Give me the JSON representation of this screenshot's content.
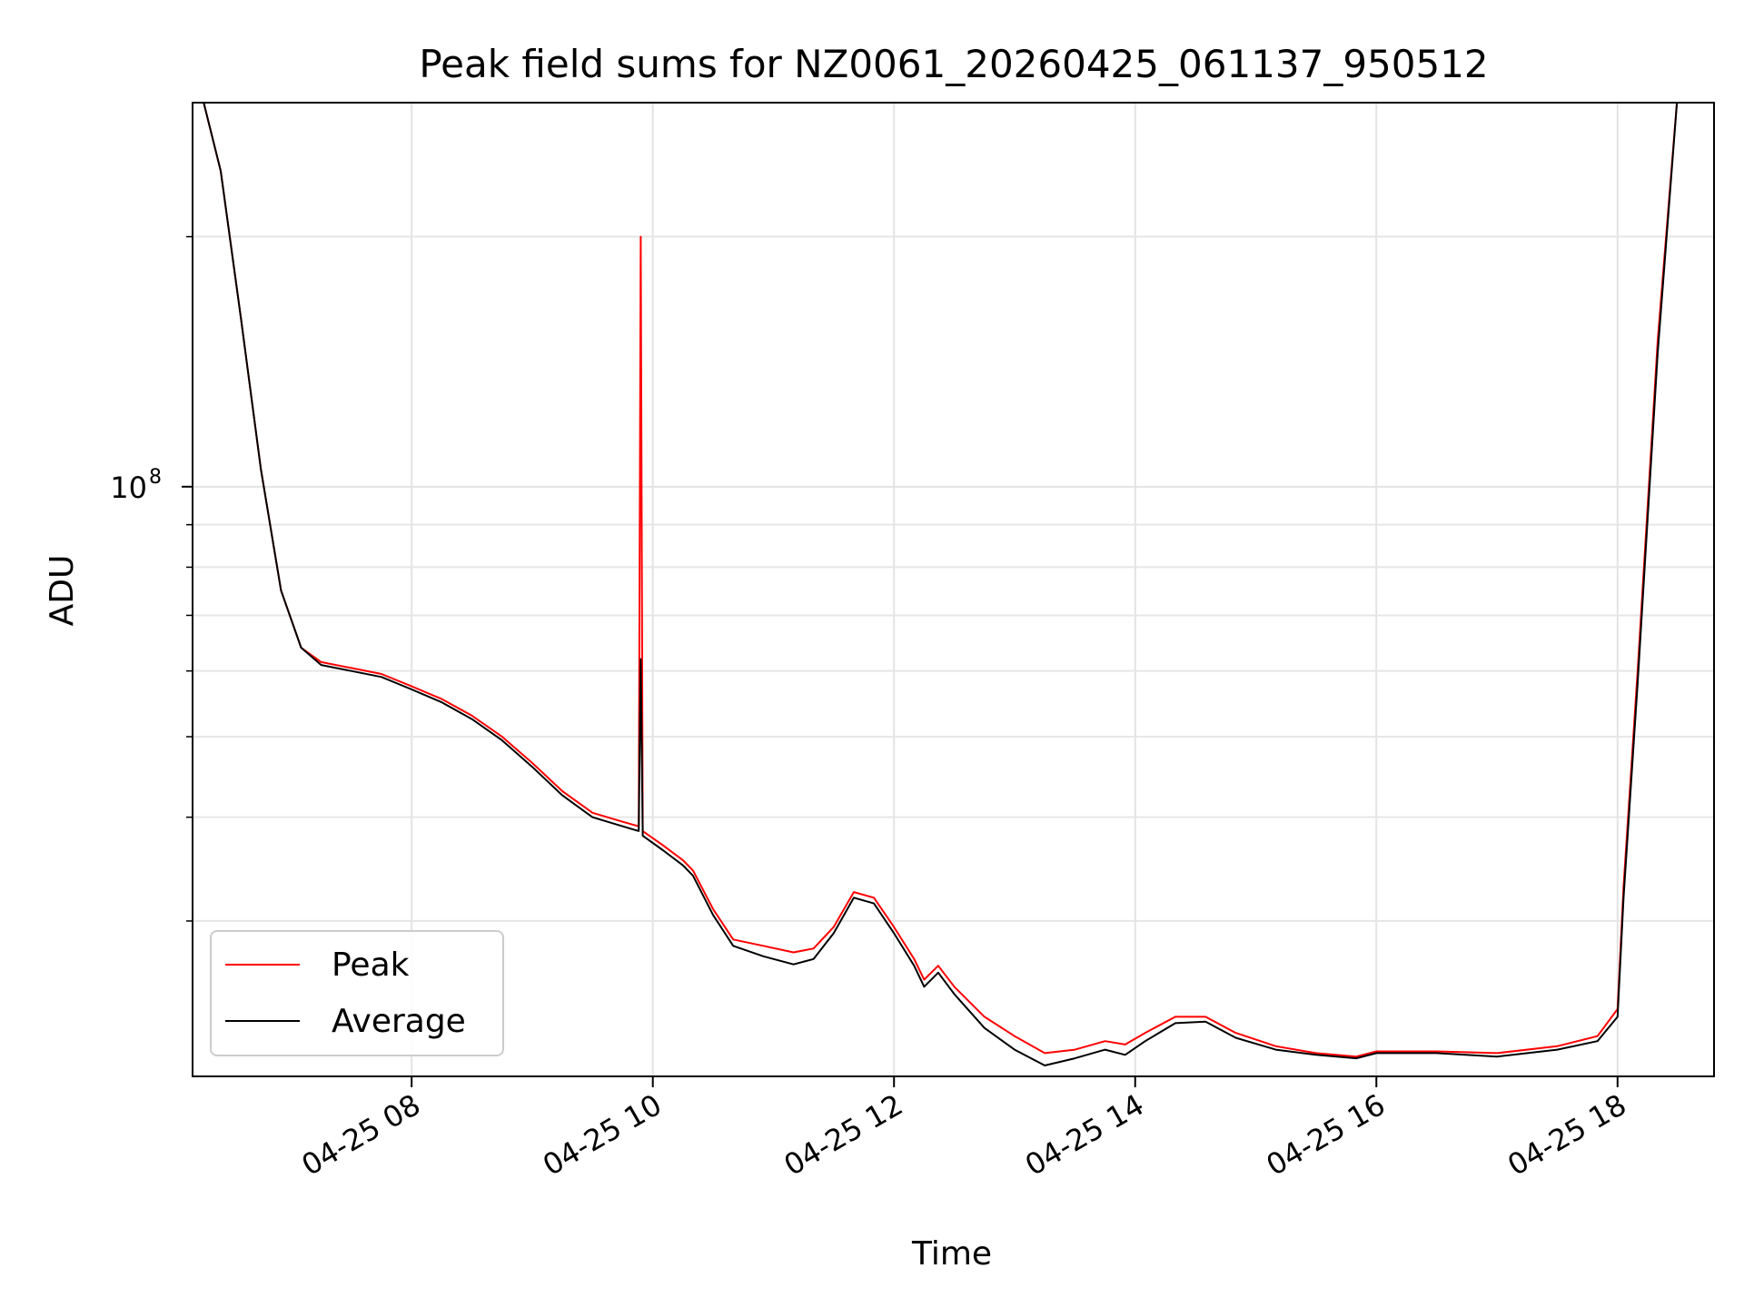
{
  "chart_data": {
    "type": "line",
    "title": "Peak field sums for NZ0061_20260425_061137_950512",
    "xlabel": "Time",
    "ylabel": "ADU",
    "yscale": "log",
    "grid": true,
    "legend": "lower-left",
    "xlim": [
      "2026-04-25 06:11",
      "2026-04-25 18:48"
    ],
    "ylim": [
      19500000,
      290000000
    ],
    "x_ticks": [
      {
        "time": "2026-04-25 08:00",
        "label": "04-25 08"
      },
      {
        "time": "2026-04-25 10:00",
        "label": "04-25 10"
      },
      {
        "time": "2026-04-25 12:00",
        "label": "04-25 12"
      },
      {
        "time": "2026-04-25 14:00",
        "label": "04-25 14"
      },
      {
        "time": "2026-04-25 16:00",
        "label": "04-25 16"
      },
      {
        "time": "2026-04-25 18:00",
        "label": "04-25 18"
      }
    ],
    "y_major_ticks": [
      {
        "value": 100000000,
        "label_base": "10",
        "label_exp": "8"
      }
    ],
    "y_minor_ticks": [
      30000000,
      40000000,
      50000000,
      60000000,
      70000000,
      80000000,
      90000000,
      200000000
    ],
    "series": [
      {
        "name": "Peak",
        "color": "#ff0000",
        "points": [
          [
            "2026-04-25 06:15",
            300000000
          ],
          [
            "2026-04-25 06:25",
            240000000
          ],
          [
            "2026-04-25 06:35",
            160000000
          ],
          [
            "2026-04-25 06:45",
            105000000
          ],
          [
            "2026-04-25 06:55",
            75000000
          ],
          [
            "2026-04-25 07:05",
            64000000
          ],
          [
            "2026-04-25 07:15",
            61500000
          ],
          [
            "2026-04-25 07:30",
            60500000
          ],
          [
            "2026-04-25 07:45",
            59500000
          ],
          [
            "2026-04-25 08:00",
            57500000
          ],
          [
            "2026-04-25 08:15",
            55500000
          ],
          [
            "2026-04-25 08:30",
            53000000
          ],
          [
            "2026-04-25 08:45",
            50000000
          ],
          [
            "2026-04-25 09:00",
            46500000
          ],
          [
            "2026-04-25 09:15",
            43000000
          ],
          [
            "2026-04-25 09:30",
            40500000
          ],
          [
            "2026-04-25 09:45",
            39500000
          ],
          [
            "2026-04-25 09:53",
            39000000
          ],
          [
            "2026-04-25 09:54",
            200000000
          ],
          [
            "2026-04-25 09:55",
            38500000
          ],
          [
            "2026-04-25 10:05",
            37000000
          ],
          [
            "2026-04-25 10:15",
            35500000
          ],
          [
            "2026-04-25 10:20",
            34500000
          ],
          [
            "2026-04-25 10:30",
            31000000
          ],
          [
            "2026-04-25 10:40",
            28500000
          ],
          [
            "2026-04-25 10:55",
            28000000
          ],
          [
            "2026-04-25 11:10",
            27500000
          ],
          [
            "2026-04-25 11:20",
            27800000
          ],
          [
            "2026-04-25 11:30",
            29500000
          ],
          [
            "2026-04-25 11:40",
            32500000
          ],
          [
            "2026-04-25 11:50",
            32000000
          ],
          [
            "2026-04-25 12:00",
            29500000
          ],
          [
            "2026-04-25 12:10",
            27000000
          ],
          [
            "2026-04-25 12:15",
            25500000
          ],
          [
            "2026-04-25 12:22",
            26500000
          ],
          [
            "2026-04-25 12:30",
            25000000
          ],
          [
            "2026-04-25 12:45",
            23000000
          ],
          [
            "2026-04-25 13:00",
            21800000
          ],
          [
            "2026-04-25 13:15",
            20800000
          ],
          [
            "2026-04-25 13:30",
            21000000
          ],
          [
            "2026-04-25 13:45",
            21500000
          ],
          [
            "2026-04-25 13:55",
            21300000
          ],
          [
            "2026-04-25 14:05",
            22000000
          ],
          [
            "2026-04-25 14:20",
            23000000
          ],
          [
            "2026-04-25 14:35",
            23000000
          ],
          [
            "2026-04-25 14:50",
            22000000
          ],
          [
            "2026-04-25 15:10",
            21200000
          ],
          [
            "2026-04-25 15:30",
            20800000
          ],
          [
            "2026-04-25 15:50",
            20600000
          ],
          [
            "2026-04-25 16:00",
            20900000
          ],
          [
            "2026-04-25 16:30",
            20900000
          ],
          [
            "2026-04-25 17:00",
            20800000
          ],
          [
            "2026-04-25 17:30",
            21200000
          ],
          [
            "2026-04-25 17:50",
            21800000
          ],
          [
            "2026-04-25 18:00",
            23500000
          ],
          [
            "2026-04-25 18:03",
            33000000
          ],
          [
            "2026-04-25 18:10",
            60000000
          ],
          [
            "2026-04-25 18:20",
            150000000
          ],
          [
            "2026-04-25 18:30",
            300000000
          ]
        ]
      },
      {
        "name": "Average",
        "color": "#000000",
        "points": [
          [
            "2026-04-25 06:15",
            300000000
          ],
          [
            "2026-04-25 06:25",
            240000000
          ],
          [
            "2026-04-25 06:35",
            160000000
          ],
          [
            "2026-04-25 06:45",
            105000000
          ],
          [
            "2026-04-25 06:55",
            75000000
          ],
          [
            "2026-04-25 07:05",
            64000000
          ],
          [
            "2026-04-25 07:15",
            61000000
          ],
          [
            "2026-04-25 07:30",
            60000000
          ],
          [
            "2026-04-25 07:45",
            59000000
          ],
          [
            "2026-04-25 08:00",
            57000000
          ],
          [
            "2026-04-25 08:15",
            55000000
          ],
          [
            "2026-04-25 08:30",
            52500000
          ],
          [
            "2026-04-25 08:45",
            49500000
          ],
          [
            "2026-04-25 09:00",
            46000000
          ],
          [
            "2026-04-25 09:15",
            42500000
          ],
          [
            "2026-04-25 09:30",
            40000000
          ],
          [
            "2026-04-25 09:45",
            39000000
          ],
          [
            "2026-04-25 09:53",
            38500000
          ],
          [
            "2026-04-25 09:54",
            62000000
          ],
          [
            "2026-04-25 09:55",
            38000000
          ],
          [
            "2026-04-25 10:05",
            36500000
          ],
          [
            "2026-04-25 10:15",
            35000000
          ],
          [
            "2026-04-25 10:20",
            34000000
          ],
          [
            "2026-04-25 10:30",
            30500000
          ],
          [
            "2026-04-25 10:40",
            28000000
          ],
          [
            "2026-04-25 10:55",
            27200000
          ],
          [
            "2026-04-25 11:10",
            26600000
          ],
          [
            "2026-04-25 11:20",
            27000000
          ],
          [
            "2026-04-25 11:30",
            29000000
          ],
          [
            "2026-04-25 11:40",
            32000000
          ],
          [
            "2026-04-25 11:50",
            31500000
          ],
          [
            "2026-04-25 12:00",
            29000000
          ],
          [
            "2026-04-25 12:10",
            26500000
          ],
          [
            "2026-04-25 12:15",
            25000000
          ],
          [
            "2026-04-25 12:22",
            26000000
          ],
          [
            "2026-04-25 12:30",
            24500000
          ],
          [
            "2026-04-25 12:45",
            22300000
          ],
          [
            "2026-04-25 13:00",
            21000000
          ],
          [
            "2026-04-25 13:15",
            20100000
          ],
          [
            "2026-04-25 13:30",
            20500000
          ],
          [
            "2026-04-25 13:45",
            21000000
          ],
          [
            "2026-04-25 13:55",
            20700000
          ],
          [
            "2026-04-25 14:05",
            21500000
          ],
          [
            "2026-04-25 14:20",
            22600000
          ],
          [
            "2026-04-25 14:35",
            22700000
          ],
          [
            "2026-04-25 14:50",
            21700000
          ],
          [
            "2026-04-25 15:10",
            21000000
          ],
          [
            "2026-04-25 15:30",
            20700000
          ],
          [
            "2026-04-25 15:50",
            20500000
          ],
          [
            "2026-04-25 16:00",
            20800000
          ],
          [
            "2026-04-25 16:30",
            20800000
          ],
          [
            "2026-04-25 17:00",
            20600000
          ],
          [
            "2026-04-25 17:30",
            21000000
          ],
          [
            "2026-04-25 17:50",
            21500000
          ],
          [
            "2026-04-25 18:00",
            23000000
          ],
          [
            "2026-04-25 18:03",
            32000000
          ],
          [
            "2026-04-25 18:10",
            58000000
          ],
          [
            "2026-04-25 18:20",
            145000000
          ],
          [
            "2026-04-25 18:30",
            300000000
          ]
        ]
      }
    ]
  }
}
